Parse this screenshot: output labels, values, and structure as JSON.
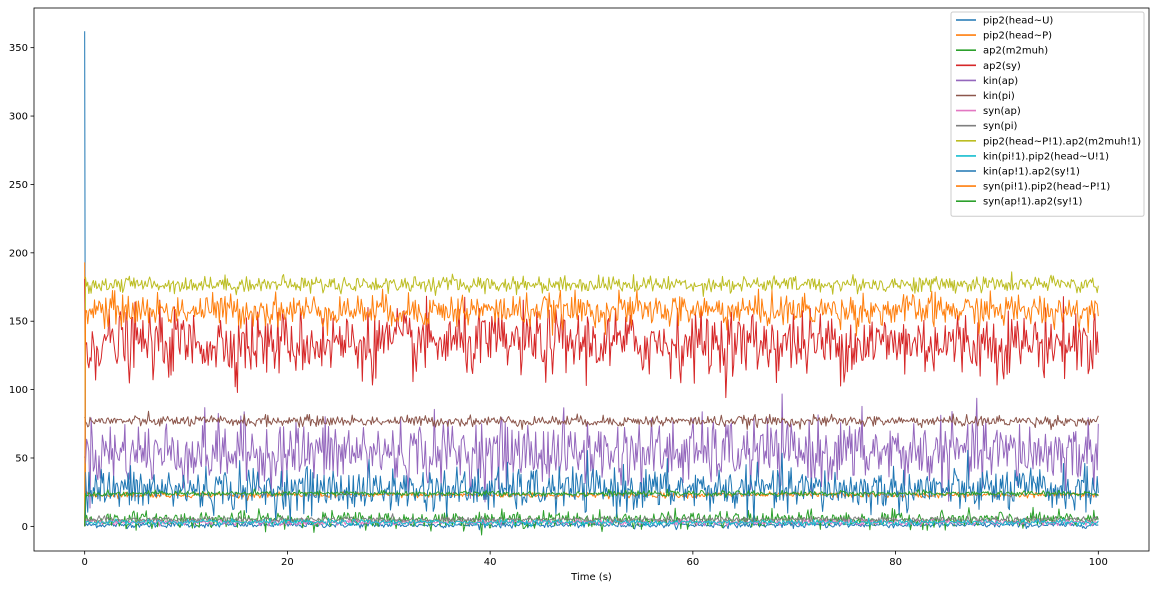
{
  "chart_data": {
    "type": "line",
    "xlabel": "Time (s)",
    "ylabel": "",
    "xlim": [
      -5,
      105
    ],
    "ylim": [
      -18,
      379
    ],
    "xticks": [
      0,
      20,
      40,
      60,
      80,
      100
    ],
    "yticks": [
      0,
      50,
      100,
      150,
      200,
      250,
      300,
      350
    ],
    "legend_position": "top-right",
    "grid": false,
    "series": [
      {
        "name": "pip2(head~U)",
        "color": "#1f77b4",
        "initial": 362,
        "mean": 1,
        "noise": 1
      },
      {
        "name": "pip2(head~P)",
        "color": "#ff7f0e",
        "initial": 193,
        "mean": 23,
        "noise": 1
      },
      {
        "name": "ap2(m2muh)",
        "color": "#2ca02c",
        "initial": 0,
        "mean": 5,
        "noise": 3
      },
      {
        "name": "ap2(sy)",
        "color": "#d62728",
        "initial": 181,
        "mean": 134,
        "noise": 12
      },
      {
        "name": "kin(ap)",
        "color": "#9467bd",
        "initial": 50,
        "mean": 54,
        "noise": 12
      },
      {
        "name": "kin(pi)",
        "color": "#8c564b",
        "initial": 80,
        "mean": 77,
        "noise": 2
      },
      {
        "name": "syn(ap)",
        "color": "#e377c2",
        "initial": 0,
        "mean": 3,
        "noise": 1
      },
      {
        "name": "syn(pi)",
        "color": "#7f7f7f",
        "initial": 0,
        "mean": 5,
        "noise": 1
      },
      {
        "name": "pip2(head~P!1).ap2(m2muh!1)",
        "color": "#bcbd22",
        "initial": 0,
        "mean": 177,
        "noise": 3
      },
      {
        "name": "kin(pi!1).pip2(head~U!1)",
        "color": "#17becf",
        "initial": 0,
        "mean": 3,
        "noise": 1
      },
      {
        "name": "kin(ap!1).ap2(sy!1)",
        "color": "#1f77b4",
        "initial": 0,
        "mean": 27,
        "noise": 8
      },
      {
        "name": "syn(pi!1).pip2(head~P!1)",
        "color": "#ff7f0e",
        "initial": 0,
        "mean": 158,
        "noise": 6
      },
      {
        "name": "syn(ap!1).ap2(sy!1)",
        "color": "#2ca02c",
        "initial": 0,
        "mean": 24,
        "noise": 1
      }
    ]
  }
}
